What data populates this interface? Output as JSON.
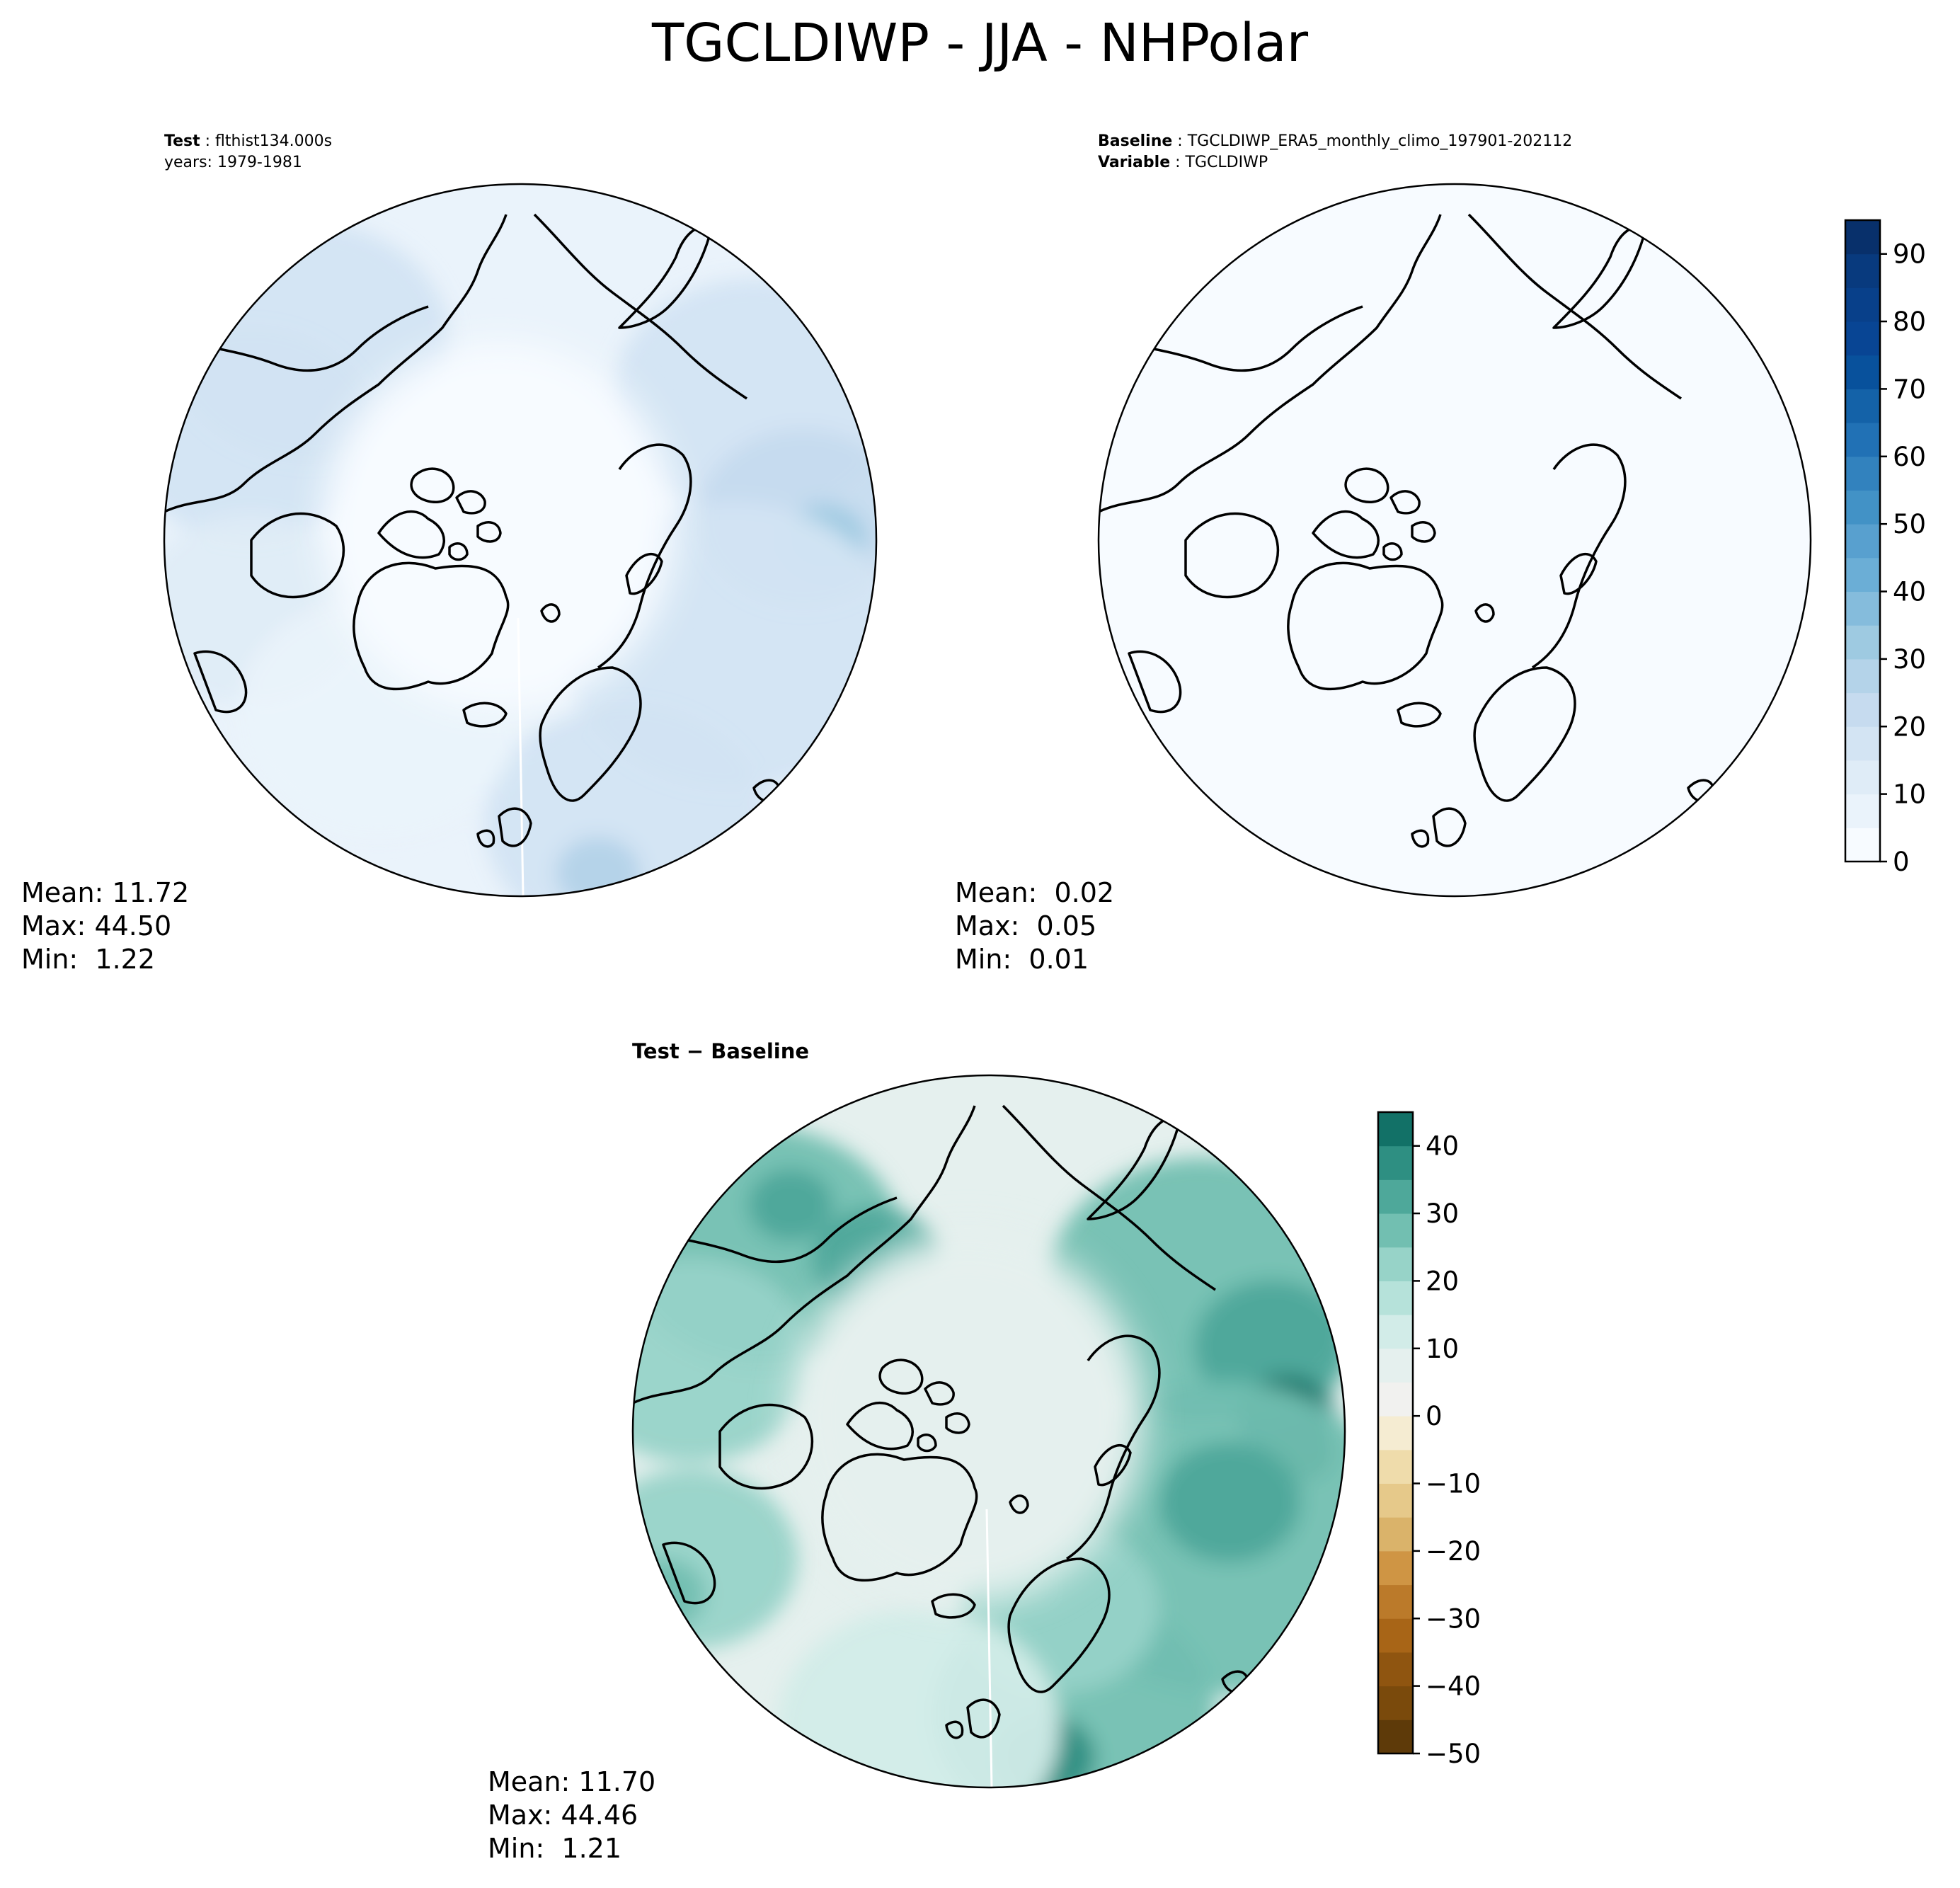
{
  "title": "TGCLDIWP - JJA - NHPolar",
  "panels": {
    "test": {
      "label_key": "Test",
      "label_value": "flthist134.000s",
      "years": "years: 1979-1981",
      "mean": "Mean: 11.72",
      "max": "Max: 44.50",
      "min": "Min:  1.22"
    },
    "baseline": {
      "label_key": "Baseline",
      "label_value": "TGCLDIWP_ERA5_monthly_climo_197901-202112",
      "variable_key": "Variable",
      "variable_value": "TGCLDIWP",
      "mean": "Mean:  0.02",
      "max": "Max:  0.05",
      "min": "Min:  0.01"
    },
    "diff": {
      "title": "Test − Baseline",
      "mean": "Mean: 11.70",
      "max": "Max: 44.46",
      "min": "Min:  1.21"
    }
  },
  "chart_data": [
    {
      "type": "heatmap",
      "name": "test",
      "projection": "north-polar-stereographic",
      "colorbar": {
        "colormap": "Blues",
        "levels": [
          0,
          5,
          10,
          15,
          20,
          25,
          30,
          35,
          40,
          45,
          50,
          55,
          60,
          65,
          70,
          75,
          80,
          85,
          90,
          95
        ],
        "ticks": [
          "0",
          "10",
          "20",
          "30",
          "40",
          "50",
          "60",
          "70",
          "80",
          "90"
        ],
        "shared_with": "baseline",
        "colors": [
          "#f7fbff",
          "#eaf3fb",
          "#dfecf7",
          "#d3e4f3",
          "#c6dbef",
          "#b4d3e9",
          "#9ecae1",
          "#85bcdc",
          "#6baed6",
          "#58a0cf",
          "#4292c6",
          "#3282be",
          "#2171b5",
          "#1462a8",
          "#08519c",
          "#084594",
          "#08408a",
          "#083a7e",
          "#08306b"
        ]
      }
    },
    {
      "type": "heatmap",
      "name": "baseline",
      "projection": "north-polar-stereographic"
    },
    {
      "type": "heatmap",
      "name": "diff",
      "projection": "north-polar-stereographic",
      "colorbar": {
        "colormap": "BrBG",
        "levels": [
          -50,
          -45,
          -40,
          -35,
          -30,
          -25,
          -20,
          -15,
          -10,
          -5,
          0,
          5,
          10,
          15,
          20,
          25,
          30,
          35,
          40,
          45
        ],
        "ticks": [
          "−50",
          "−40",
          "−30",
          "−20",
          "−10",
          "0",
          "10",
          "20",
          "30",
          "40"
        ],
        "colors": [
          "#5e3a09",
          "#7a4a0c",
          "#8f5510",
          "#a86517",
          "#bb7a2a",
          "#cf9544",
          "#dab36a",
          "#e6c98a",
          "#efdcab",
          "#f5ecd2",
          "#f1f1ef",
          "#e5f0ee",
          "#d2ece8",
          "#b6e2da",
          "#97d3c8",
          "#72bfb1",
          "#4ea89a",
          "#2e8f82",
          "#127167",
          "#01564b"
        ]
      }
    }
  ]
}
